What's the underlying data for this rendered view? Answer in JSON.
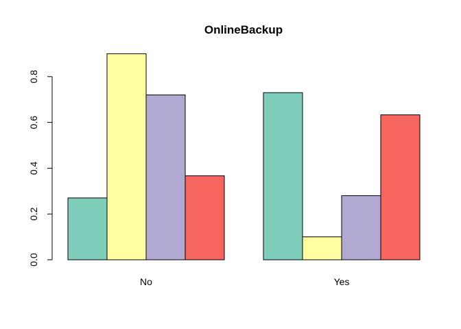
{
  "chart_data": {
    "type": "bar",
    "layout": "grouped",
    "title": "OnlineBackup",
    "xlabel": "",
    "ylabel": "",
    "categories": [
      "No",
      "Yes"
    ],
    "ylim": [
      0,
      0.9
    ],
    "yticks": [
      0.0,
      0.2,
      0.4,
      0.6,
      0.8
    ],
    "ytick_labels": [
      "0.0",
      "0.2",
      "0.4",
      "0.6",
      "0.8"
    ],
    "grid": false,
    "legend": "none",
    "series": [
      {
        "color": "#7fcdbb",
        "values": [
          0.27,
          0.73
        ]
      },
      {
        "color": "#ffffa1",
        "values": [
          0.9,
          0.1
        ]
      },
      {
        "color": "#b0aad2",
        "values": [
          0.72,
          0.28
        ]
      },
      {
        "color": "#f7665e",
        "values": [
          0.367,
          0.633
        ]
      }
    ]
  }
}
